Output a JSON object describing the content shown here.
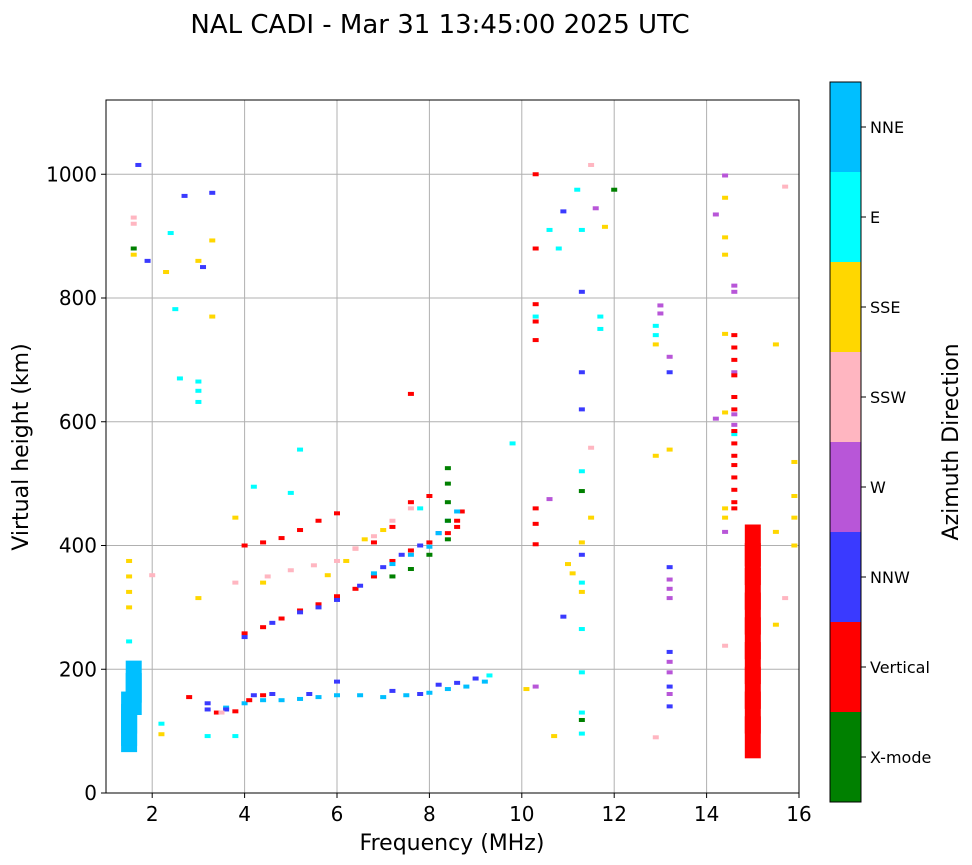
{
  "chart_data": {
    "type": "scatter",
    "title": "NAL CADI - Mar 31 13:45:00 2025 UTC",
    "xlabel": "Frequency (MHz)",
    "ylabel": "Virtual height (km)",
    "xlim": [
      1,
      16
    ],
    "ylim": [
      0,
      1120
    ],
    "xticks": [
      2,
      4,
      6,
      8,
      10,
      12,
      14,
      16
    ],
    "yticks": [
      0,
      200,
      400,
      600,
      800,
      1000
    ],
    "grid": true,
    "colorbar": {
      "label": "Azimuth Direction",
      "categories": [
        {
          "name": "X-mode",
          "color": "#008000"
        },
        {
          "name": "Vertical",
          "color": "#ff0000"
        },
        {
          "name": "NNW",
          "color": "#3a3aff"
        },
        {
          "name": "W",
          "color": "#b856d8"
        },
        {
          "name": "SSW",
          "color": "#ffb6c1"
        },
        {
          "name": "SSE",
          "color": "#ffd700"
        },
        {
          "name": "E",
          "color": "#00ffff"
        },
        {
          "name": "NNE",
          "color": "#00bfff"
        }
      ]
    },
    "series": [
      {
        "name": "Lower layer trace (~140-190 km)",
        "category": "NNE",
        "points": [
          [
            3.6,
            138
          ],
          [
            4.0,
            145
          ],
          [
            4.4,
            150
          ],
          [
            4.8,
            150
          ],
          [
            5.2,
            152
          ],
          [
            5.6,
            155
          ],
          [
            6.0,
            158
          ],
          [
            6.5,
            158
          ],
          [
            7.0,
            155
          ],
          [
            7.5,
            158
          ],
          [
            8.0,
            162
          ],
          [
            8.4,
            168
          ],
          [
            8.8,
            172
          ],
          [
            9.2,
            180
          ]
        ]
      },
      {
        "name": "Lower layer trace NNW",
        "category": "NNW",
        "points": [
          [
            3.2,
            135
          ],
          [
            3.6,
            135
          ],
          [
            4.2,
            158
          ],
          [
            4.6,
            160
          ],
          [
            5.4,
            160
          ],
          [
            6.0,
            180
          ],
          [
            7.2,
            165
          ],
          [
            7.8,
            160
          ],
          [
            8.2,
            175
          ],
          [
            8.6,
            178
          ],
          [
            9.0,
            185
          ]
        ]
      },
      {
        "name": "Lower layer Vertical",
        "category": "Vertical",
        "points": [
          [
            2.8,
            155
          ],
          [
            3.4,
            130
          ],
          [
            3.8,
            132
          ],
          [
            4.1,
            150
          ],
          [
            4.4,
            158
          ]
        ]
      },
      {
        "name": "F-layer main trace Vertical",
        "category": "Vertical",
        "points": [
          [
            4.0,
            258
          ],
          [
            4.4,
            268
          ],
          [
            4.8,
            282
          ],
          [
            5.2,
            295
          ],
          [
            5.6,
            305
          ],
          [
            6.0,
            318
          ],
          [
            6.4,
            330
          ],
          [
            6.8,
            350
          ],
          [
            7.2,
            375
          ],
          [
            7.6,
            392
          ],
          [
            8.0,
            405
          ],
          [
            8.4,
            420
          ],
          [
            8.6,
            440
          ],
          [
            8.7,
            455
          ]
        ]
      },
      {
        "name": "F-layer main trace NNW",
        "category": "NNW",
        "points": [
          [
            4.0,
            252
          ],
          [
            4.6,
            275
          ],
          [
            5.2,
            292
          ],
          [
            5.6,
            300
          ],
          [
            6.0,
            312
          ],
          [
            6.5,
            335
          ],
          [
            7.0,
            365
          ],
          [
            7.4,
            385
          ],
          [
            7.8,
            400
          ],
          [
            8.2,
            420
          ]
        ]
      },
      {
        "name": "F-layer main trace NNE",
        "category": "NNE",
        "points": [
          [
            6.8,
            355
          ],
          [
            7.2,
            370
          ],
          [
            7.6,
            385
          ],
          [
            8.0,
            398
          ],
          [
            8.2,
            420
          ],
          [
            8.4,
            440
          ],
          [
            8.6,
            455
          ]
        ]
      },
      {
        "name": "F-layer X-mode",
        "category": "X-mode",
        "points": [
          [
            7.2,
            350
          ],
          [
            7.6,
            362
          ],
          [
            8.0,
            385
          ],
          [
            8.4,
            410
          ],
          [
            8.4,
            440
          ],
          [
            8.4,
            470
          ],
          [
            8.4,
            500
          ],
          [
            8.4,
            525
          ]
        ]
      },
      {
        "name": "Second trace Vertical",
        "category": "Vertical",
        "points": [
          [
            4.0,
            400
          ],
          [
            4.4,
            405
          ],
          [
            4.8,
            412
          ],
          [
            5.2,
            425
          ],
          [
            5.6,
            440
          ],
          [
            6.0,
            452
          ],
          [
            6.4,
            395
          ],
          [
            6.8,
            405
          ],
          [
            7.2,
            430
          ],
          [
            7.6,
            470
          ],
          [
            8.0,
            480
          ],
          [
            8.6,
            430
          ]
        ]
      },
      {
        "name": "Second trace SSW",
        "category": "SSW",
        "points": [
          [
            4.5,
            350
          ],
          [
            5.0,
            360
          ],
          [
            5.5,
            368
          ],
          [
            6.0,
            375
          ],
          [
            6.4,
            395
          ],
          [
            6.8,
            415
          ],
          [
            7.2,
            440
          ],
          [
            7.6,
            460
          ]
        ]
      },
      {
        "name": "Second trace SSE",
        "category": "SSE",
        "points": [
          [
            4.4,
            340
          ],
          [
            5.8,
            352
          ],
          [
            6.2,
            375
          ],
          [
            6.6,
            410
          ],
          [
            7.0,
            425
          ],
          [
            3.8,
            445
          ],
          [
            3.0,
            315
          ]
        ]
      },
      {
        "name": "Scattered echoes E",
        "category": "E",
        "points": [
          [
            1.5,
            245
          ],
          [
            1.6,
            96
          ],
          [
            2.2,
            112
          ],
          [
            2.4,
            905
          ],
          [
            2.5,
            782
          ],
          [
            2.6,
            670
          ],
          [
            3.0,
            632
          ],
          [
            3.0,
            650
          ],
          [
            3.0,
            665
          ],
          [
            3.2,
            92
          ],
          [
            3.8,
            92
          ],
          [
            4.2,
            495
          ],
          [
            5.0,
            485
          ],
          [
            5.2,
            555
          ],
          [
            7.8,
            460
          ],
          [
            9.3,
            190
          ],
          [
            9.8,
            565
          ],
          [
            10.3,
            770
          ],
          [
            10.6,
            910
          ],
          [
            10.8,
            880
          ],
          [
            11.2,
            975
          ],
          [
            11.3,
            910
          ],
          [
            11.3,
            520
          ],
          [
            11.3,
            340
          ],
          [
            11.3,
            265
          ],
          [
            11.3,
            195
          ],
          [
            11.3,
            130
          ],
          [
            11.3,
            96
          ],
          [
            11.7,
            750
          ],
          [
            11.7,
            770
          ],
          [
            12.9,
            755
          ],
          [
            12.9,
            740
          ],
          [
            14.6,
            580
          ]
        ]
      },
      {
        "name": "Scattered echoes SSE",
        "category": "SSE",
        "points": [
          [
            1.5,
            325
          ],
          [
            1.5,
            300
          ],
          [
            1.5,
            350
          ],
          [
            1.5,
            375
          ],
          [
            1.6,
            870
          ],
          [
            2.3,
            842
          ],
          [
            2.2,
            95
          ],
          [
            3.3,
            770
          ],
          [
            3.3,
            893
          ],
          [
            3.0,
            860
          ],
          [
            10.1,
            168
          ],
          [
            10.7,
            92
          ],
          [
            11.0,
            370
          ],
          [
            11.1,
            355
          ],
          [
            11.3,
            405
          ],
          [
            11.3,
            325
          ],
          [
            11.5,
            445
          ],
          [
            11.8,
            915
          ],
          [
            12.9,
            725
          ],
          [
            12.9,
            545
          ],
          [
            13.2,
            555
          ],
          [
            14.4,
            962
          ],
          [
            14.4,
            898
          ],
          [
            14.4,
            870
          ],
          [
            14.4,
            742
          ],
          [
            14.4,
            615
          ],
          [
            14.4,
            460
          ],
          [
            14.4,
            445
          ],
          [
            15.5,
            725
          ],
          [
            15.5,
            422
          ],
          [
            15.5,
            272
          ],
          [
            15.9,
            535
          ],
          [
            15.9,
            480
          ],
          [
            15.9,
            445
          ],
          [
            15.9,
            400
          ]
        ]
      },
      {
        "name": "Scattered echoes W",
        "category": "W",
        "points": [
          [
            10.6,
            475
          ],
          [
            10.3,
            172
          ],
          [
            11.6,
            945
          ],
          [
            13.0,
            788
          ],
          [
            13.0,
            775
          ],
          [
            13.2,
            705
          ],
          [
            13.2,
            345
          ],
          [
            13.2,
            330
          ],
          [
            13.2,
            315
          ],
          [
            13.2,
            212
          ],
          [
            13.2,
            195
          ],
          [
            13.2,
            160
          ],
          [
            14.2,
            935
          ],
          [
            14.2,
            605
          ],
          [
            14.4,
            998
          ],
          [
            14.4,
            422
          ],
          [
            14.6,
            820
          ],
          [
            14.6,
            810
          ],
          [
            14.6,
            680
          ],
          [
            14.6,
            612
          ],
          [
            14.6,
            595
          ]
        ]
      },
      {
        "name": "Scattered echoes NNW",
        "category": "NNW",
        "points": [
          [
            1.7,
            1015
          ],
          [
            1.9,
            860
          ],
          [
            2.7,
            965
          ],
          [
            3.1,
            850
          ],
          [
            3.3,
            970
          ],
          [
            3.2,
            145
          ],
          [
            10.9,
            940
          ],
          [
            10.9,
            285
          ],
          [
            11.3,
            810
          ],
          [
            11.3,
            680
          ],
          [
            11.3,
            620
          ],
          [
            11.3,
            385
          ],
          [
            13.2,
            680
          ],
          [
            13.2,
            365
          ],
          [
            13.2,
            228
          ],
          [
            13.2,
            172
          ],
          [
            13.2,
            140
          ]
        ]
      },
      {
        "name": "Scattered echoes SSW",
        "category": "SSW",
        "points": [
          [
            1.6,
            930
          ],
          [
            1.6,
            920
          ],
          [
            2.0,
            352
          ],
          [
            3.5,
            130
          ],
          [
            3.8,
            340
          ],
          [
            11.5,
            558
          ],
          [
            11.5,
            1015
          ],
          [
            12.9,
            90
          ],
          [
            14.4,
            238
          ],
          [
            15.7,
            980
          ],
          [
            15.7,
            315
          ]
        ]
      },
      {
        "name": "Scattered echoes X-mode",
        "category": "X-mode",
        "points": [
          [
            1.6,
            880
          ],
          [
            12.0,
            975
          ],
          [
            11.3,
            488
          ],
          [
            11.3,
            118
          ]
        ]
      },
      {
        "name": "Scattered echoes Vertical",
        "category": "Vertical",
        "points": [
          [
            10.3,
            1000
          ],
          [
            10.3,
            880
          ],
          [
            10.3,
            790
          ],
          [
            10.3,
            762
          ],
          [
            10.3,
            732
          ],
          [
            10.3,
            460
          ],
          [
            10.3,
            435
          ],
          [
            10.3,
            402
          ],
          [
            14.6,
            740
          ],
          [
            14.6,
            720
          ],
          [
            14.6,
            700
          ],
          [
            14.6,
            675
          ],
          [
            14.6,
            640
          ],
          [
            14.6,
            620
          ],
          [
            14.6,
            585
          ],
          [
            14.6,
            565
          ],
          [
            14.6,
            545
          ],
          [
            14.6,
            530
          ],
          [
            14.6,
            510
          ],
          [
            14.6,
            490
          ],
          [
            14.6,
            470
          ],
          [
            14.6,
            460
          ],
          [
            7.6,
            645
          ]
        ]
      },
      {
        "name": "Vertical column near 15 MHz",
        "category": "Vertical",
        "points": [
          [
            15.0,
            90
          ],
          [
            15.0,
            130
          ],
          [
            15.0,
            170
          ],
          [
            15.0,
            210
          ],
          [
            15.0,
            250
          ],
          [
            15.0,
            290
          ],
          [
            15.0,
            330
          ],
          [
            15.0,
            370
          ],
          [
            15.0,
            400
          ]
        ]
      },
      {
        "name": "Near-vertical columns at 1.5 MHz",
        "category": "NNE",
        "points": [
          [
            1.5,
            100
          ],
          [
            1.5,
            110
          ],
          [
            1.5,
            130
          ],
          [
            1.6,
            160
          ],
          [
            1.6,
            180
          ]
        ]
      }
    ]
  }
}
